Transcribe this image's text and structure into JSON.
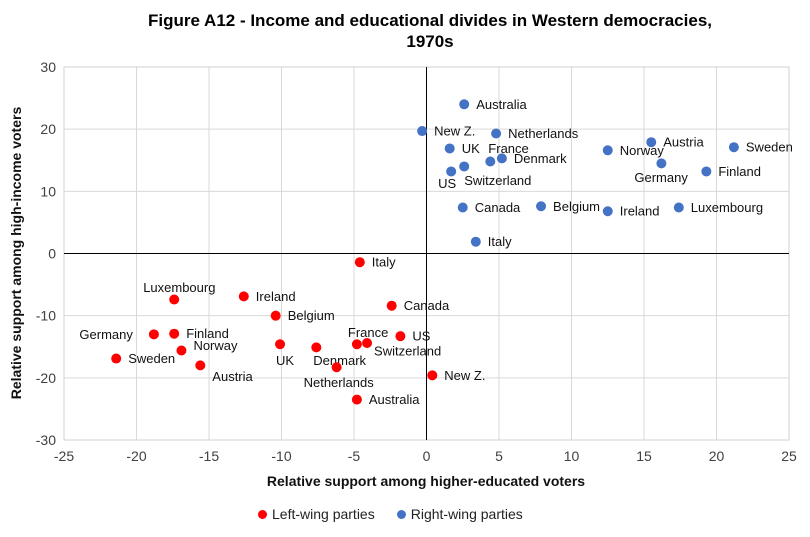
{
  "chart_data": {
    "type": "scatter",
    "title": "Figure A12 - Income and educational divides in Western democracies, 1970s",
    "title_lines": [
      "Figure A12 - Income and educational divides in Western democracies,",
      "1970s"
    ],
    "xlabel": "Relative support among higher-educated voters",
    "ylabel": "Relative support among high-income voters",
    "xlim": [
      -25,
      25
    ],
    "ylim": [
      -30,
      30
    ],
    "xticks": [
      -25,
      -20,
      -15,
      -10,
      -5,
      0,
      5,
      10,
      15,
      20,
      25
    ],
    "yticks": [
      -30,
      -20,
      -10,
      0,
      10,
      20,
      30
    ],
    "grid": true,
    "legend_placement": "bottom",
    "series": [
      {
        "name": "Left-wing parties",
        "color": "#ff0000",
        "points": [
          {
            "label": "Italy",
            "x": -4.6,
            "y": -1.4
          },
          {
            "label": "Luxembourg",
            "x": -17.4,
            "y": -7.4
          },
          {
            "label": "Ireland",
            "x": -12.6,
            "y": -6.9
          },
          {
            "label": "Canada",
            "x": -2.4,
            "y": -8.4
          },
          {
            "label": "Belgium",
            "x": -10.4,
            "y": -10.0
          },
          {
            "label": "Germany",
            "x": -18.8,
            "y": -13.0
          },
          {
            "label": "Finland",
            "x": -17.4,
            "y": -12.9
          },
          {
            "label": "US",
            "x": -1.8,
            "y": -13.3
          },
          {
            "label": "France",
            "x": -4.8,
            "y": -14.6
          },
          {
            "label": "Switzerland",
            "x": -4.1,
            "y": -14.4
          },
          {
            "label": "UK",
            "x": -10.1,
            "y": -14.6
          },
          {
            "label": "Denmark",
            "x": -7.6,
            "y": -15.1
          },
          {
            "label": "Norway",
            "x": -16.9,
            "y": -15.6
          },
          {
            "label": "Sweden",
            "x": -21.4,
            "y": -16.9
          },
          {
            "label": "Austria",
            "x": -15.6,
            "y": -18.0
          },
          {
            "label": "Netherlands",
            "x": -6.2,
            "y": -18.3
          },
          {
            "label": "New Z.",
            "x": 0.4,
            "y": -19.6
          },
          {
            "label": "Australia",
            "x": -4.8,
            "y": -23.5
          }
        ]
      },
      {
        "name": "Right-wing parties",
        "color": "#4472c4",
        "points": [
          {
            "label": "Australia",
            "x": 2.6,
            "y": 24.0
          },
          {
            "label": "New Z.",
            "x": -0.3,
            "y": 19.7
          },
          {
            "label": "Netherlands",
            "x": 4.8,
            "y": 19.3
          },
          {
            "label": "UK",
            "x": 1.6,
            "y": 16.9
          },
          {
            "label": "France",
            "x": 4.4,
            "y": 14.8
          },
          {
            "label": "Denmark",
            "x": 5.2,
            "y": 15.3
          },
          {
            "label": "Switzerland",
            "x": 2.6,
            "y": 14.0
          },
          {
            "label": "US",
            "x": 1.7,
            "y": 13.2
          },
          {
            "label": "Austria",
            "x": 15.5,
            "y": 17.9
          },
          {
            "label": "Sweden",
            "x": 21.2,
            "y": 17.1
          },
          {
            "label": "Norway",
            "x": 12.5,
            "y": 16.6
          },
          {
            "label": "Germany",
            "x": 16.2,
            "y": 14.5
          },
          {
            "label": "Finland",
            "x": 19.3,
            "y": 13.2
          },
          {
            "label": "Canada",
            "x": 2.5,
            "y": 7.4
          },
          {
            "label": "Belgium",
            "x": 7.9,
            "y": 7.6
          },
          {
            "label": "Ireland",
            "x": 12.5,
            "y": 6.8
          },
          {
            "label": "Luxembourg",
            "x": 17.4,
            "y": 7.4
          },
          {
            "label": "Italy",
            "x": 3.4,
            "y": 1.9
          }
        ]
      }
    ]
  }
}
